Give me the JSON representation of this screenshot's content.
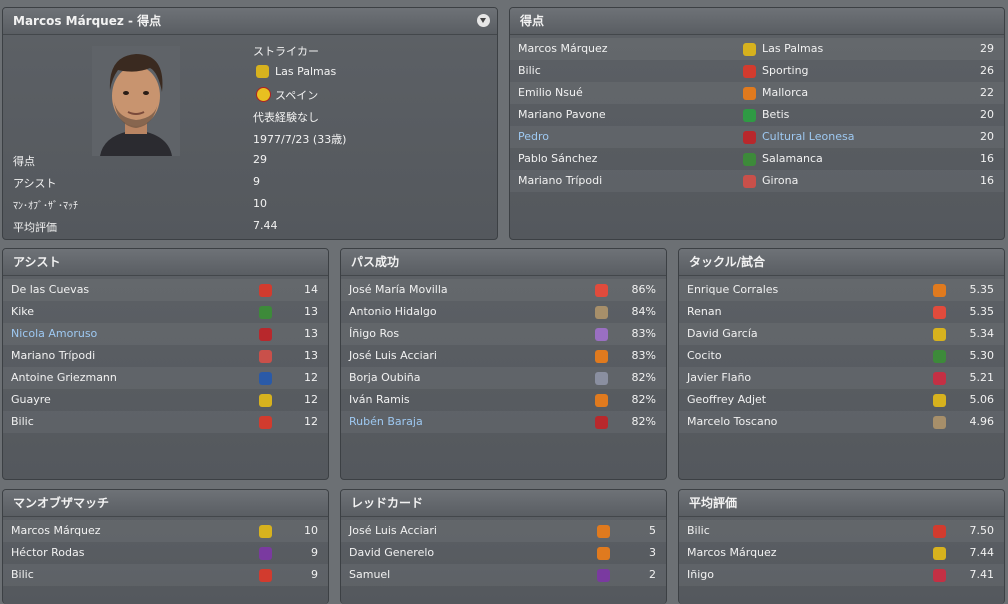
{
  "profile": {
    "title": "Marcos Márquez - 得点",
    "position": "ストライカー",
    "club": "Las Palmas",
    "nation": "スペイン",
    "intl": "代表経験なし",
    "birth": "1977/7/23 (33歳)",
    "stats": [
      {
        "label": "得点",
        "value": "29"
      },
      {
        "label": "アシスト",
        "value": "9"
      },
      {
        "label": "ﾏﾝ･ｵﾌﾞ･ｻﾞ･ﾏｯﾁ",
        "value": "10"
      },
      {
        "label": "平均評価",
        "value": "7.44"
      }
    ]
  },
  "scorers": {
    "title": "得点",
    "rows": [
      {
        "name": "Marcos Márquez",
        "club": "Las Palmas",
        "value": "29",
        "color": "#d7b21e"
      },
      {
        "name": "Bilic",
        "club": "Sporting",
        "value": "26",
        "color": "#d23b2e"
      },
      {
        "name": "Emilio Nsué",
        "club": "Mallorca",
        "value": "22",
        "color": "#e07a1e"
      },
      {
        "name": "Mariano Pavone",
        "club": "Betis",
        "value": "20",
        "color": "#2f9a44"
      },
      {
        "name": "Pedro",
        "club": "Cultural Leonesa",
        "value": "20",
        "color": "#b8282c",
        "link": true
      },
      {
        "name": "Pablo Sánchez",
        "club": "Salamanca",
        "value": "16",
        "color": "#3d8a3a"
      },
      {
        "name": "Mariano Trípodi",
        "club": "Girona",
        "value": "16",
        "color": "#c9504a"
      }
    ]
  },
  "assists": {
    "title": "アシスト",
    "rows": [
      {
        "name": "De las Cuevas",
        "value": "14",
        "color": "#d23b2e"
      },
      {
        "name": "Kike",
        "value": "13",
        "color": "#3d8a3a"
      },
      {
        "name": "Nicola Amoruso",
        "value": "13",
        "color": "#b8282c",
        "link": true
      },
      {
        "name": "Mariano Trípodi",
        "value": "13",
        "color": "#c9504a"
      },
      {
        "name": "Antoine Griezmann",
        "value": "12",
        "color": "#2a5aa8"
      },
      {
        "name": "Guayre",
        "value": "12",
        "color": "#d7b21e"
      },
      {
        "name": "Bilic",
        "value": "12",
        "color": "#d23b2e"
      }
    ]
  },
  "passes": {
    "title": "パス成功",
    "rows": [
      {
        "name": "José María Movilla",
        "value": "86%",
        "color": "#e14b3c"
      },
      {
        "name": "Antonio Hidalgo",
        "value": "84%",
        "color": "#a78f6a"
      },
      {
        "name": "Íñigo Ros",
        "value": "83%",
        "color": "#9a6fc2"
      },
      {
        "name": "José Luis Acciari",
        "value": "83%",
        "color": "#e07a1e"
      },
      {
        "name": "Borja Oubiña",
        "value": "82%",
        "color": "#8a8fa0"
      },
      {
        "name": "Iván Ramis",
        "value": "82%",
        "color": "#e07a1e"
      },
      {
        "name": "Rubén Baraja",
        "value": "82%",
        "color": "#b8282c",
        "link": true
      }
    ]
  },
  "tackles": {
    "title": "タックル/試合",
    "rows": [
      {
        "name": "Enrique Corrales",
        "value": "5.35",
        "color": "#e07a1e"
      },
      {
        "name": "Renan",
        "value": "5.35",
        "color": "#e14b3c"
      },
      {
        "name": "David García",
        "value": "5.34",
        "color": "#d7b21e"
      },
      {
        "name": "Cocito",
        "value": "5.30",
        "color": "#3d8a3a"
      },
      {
        "name": "Javier Flaño",
        "value": "5.21",
        "color": "#c43044"
      },
      {
        "name": "Geoffrey Adjet",
        "value": "5.06",
        "color": "#d7b21e"
      },
      {
        "name": "Marcelo Toscano",
        "value": "4.96",
        "color": "#a78f6a"
      }
    ]
  },
  "motm": {
    "title": "マンオブザマッチ",
    "rows": [
      {
        "name": "Marcos Márquez",
        "value": "10",
        "color": "#d7b21e"
      },
      {
        "name": "Héctor Rodas",
        "value": "9",
        "color": "#7a3aa0"
      },
      {
        "name": "Bilic",
        "value": "9",
        "color": "#d23b2e"
      }
    ]
  },
  "redcards": {
    "title": "レッドカード",
    "rows": [
      {
        "name": "José Luis Acciari",
        "value": "5",
        "color": "#e07a1e"
      },
      {
        "name": "David Generelo",
        "value": "3",
        "color": "#e07a1e"
      },
      {
        "name": "Samuel",
        "value": "2",
        "color": "#7a3aa0"
      }
    ]
  },
  "ratings": {
    "title": "平均評価",
    "rows": [
      {
        "name": "Bilic",
        "value": "7.50",
        "color": "#d23b2e"
      },
      {
        "name": "Marcos Márquez",
        "value": "7.44",
        "color": "#d7b21e"
      },
      {
        "name": "Iñigo",
        "value": "7.41",
        "color": "#c43044"
      }
    ]
  }
}
